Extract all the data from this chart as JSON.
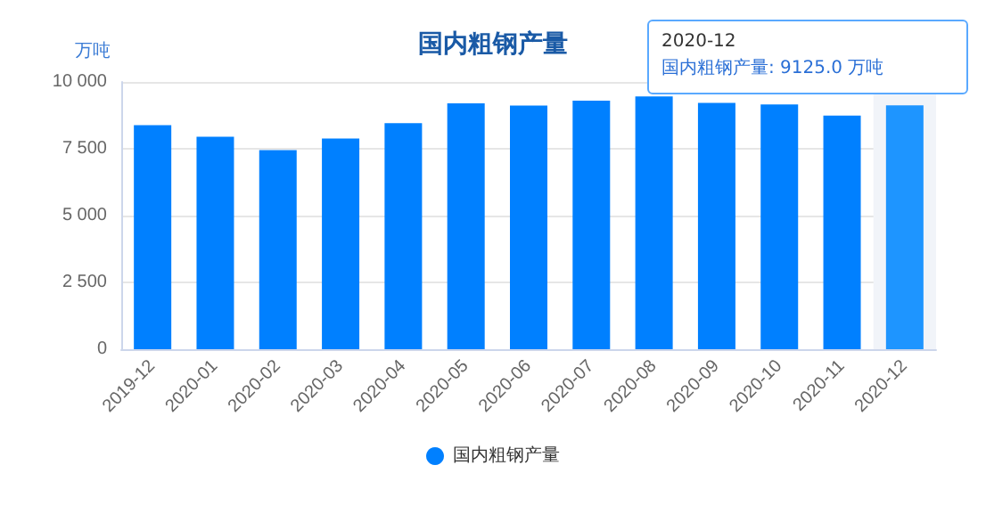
{
  "chart_data": {
    "type": "bar",
    "title": "国内粗钢产量",
    "ylabel": "万吨",
    "categories": [
      "2019-12",
      "2020-01",
      "2020-02",
      "2020-03",
      "2020-04",
      "2020-05",
      "2020-06",
      "2020-07",
      "2020-08",
      "2020-09",
      "2020-10",
      "2020-11",
      "2020-12"
    ],
    "series": [
      {
        "name": "国内粗钢产量",
        "color": "#0080ff",
        "values": [
          8380,
          7950,
          7450,
          7880,
          8460,
          9200,
          9120,
          9300,
          9460,
          9220,
          9160,
          8740,
          9125
        ],
        "colors": [
          "#0080ff",
          "#0080ff",
          "#0080ff",
          "#0080ff",
          "#0080ff",
          "#0080ff",
          "#0080ff",
          "#0080ff",
          "#0080ff",
          "#0080ff",
          "#0080ff",
          "#0080ff",
          "#1e95ff"
        ]
      }
    ],
    "ylim": [
      0,
      10000
    ],
    "yticks": [
      0,
      {
        "value": 2500,
        "label": "2 500"
      },
      {
        "value": 5000,
        "label": "5 000"
      },
      {
        "value": 7500,
        "label": "7 500"
      },
      {
        "value": 10000,
        "label": "10 000"
      }
    ],
    "grid": "y",
    "legend": "bottom",
    "bands": [
      {
        "axis": "x",
        "from": "2020-12",
        "to": "2020-12",
        "color": "#f1f4f9"
      }
    ],
    "annotations": [
      {
        "text": "2020-12\n国内粗钢产量: 9125.0 万吨",
        "x": "2020-12",
        "y": 9125
      }
    ]
  }
}
